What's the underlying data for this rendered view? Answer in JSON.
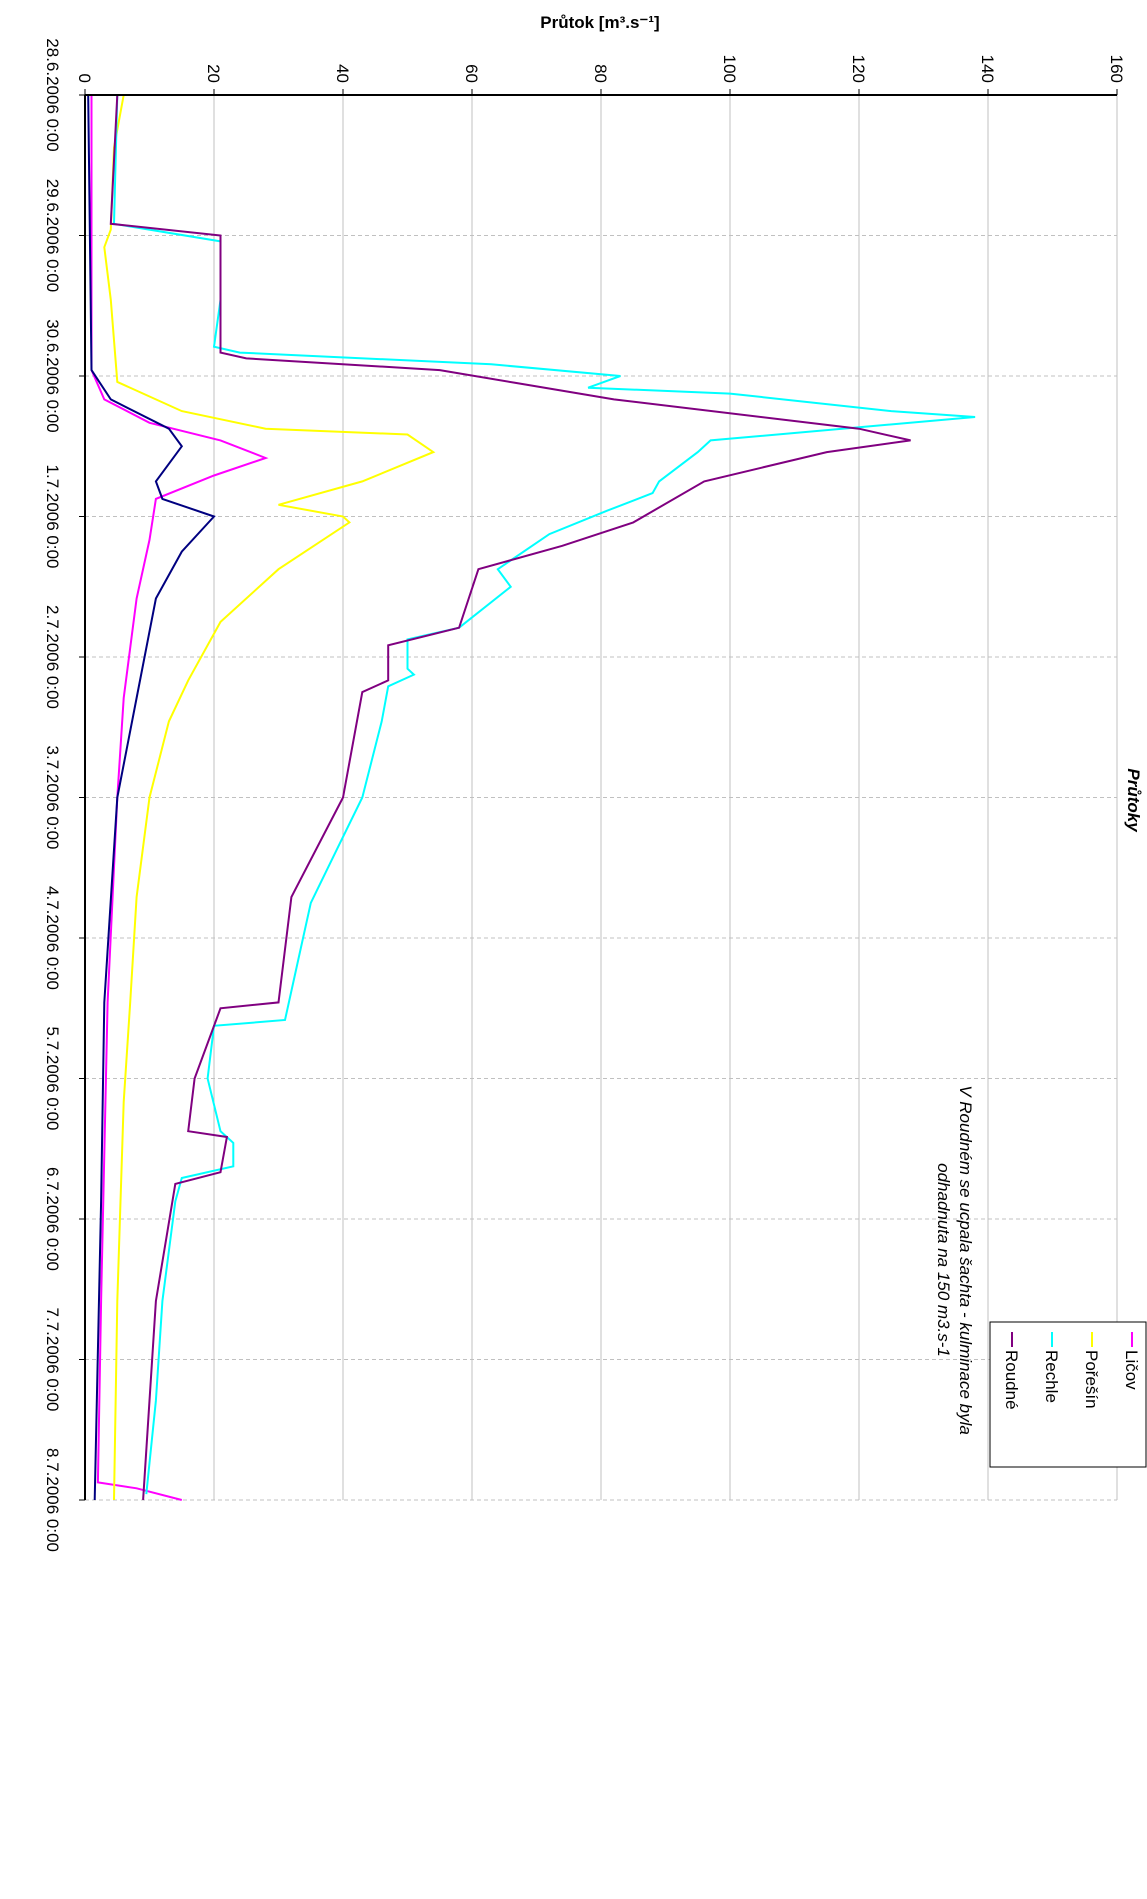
{
  "chart_data": {
    "type": "line",
    "title": "Průtoky",
    "y_label": "Průtok [m³.s⁻¹]",
    "annotations": [
      "V Roudném se ucpala šachta - kulminace byla",
      "odhadnuta na 150 m3.s-1"
    ],
    "ylim": [
      0,
      160
    ],
    "yticks": [
      0,
      20,
      40,
      60,
      80,
      100,
      120,
      140,
      160
    ],
    "xlim": [
      "2006-06-28T00:00",
      "2006-07-08T00:00"
    ],
    "xticks": [
      {
        "value": "2006-06-28T00:00",
        "label": "28.6.2006 0:00"
      },
      {
        "value": "2006-06-29T00:00",
        "label": "29.6.2006 0:00"
      },
      {
        "value": "2006-06-30T00:00",
        "label": "30.6.2006 0:00"
      },
      {
        "value": "2006-07-01T00:00",
        "label": "1.7.2006 0:00"
      },
      {
        "value": "2006-07-02T00:00",
        "label": "2.7.2006 0:00"
      },
      {
        "value": "2006-07-03T00:00",
        "label": "3.7.2006 0:00"
      },
      {
        "value": "2006-07-04T00:00",
        "label": "4.7.2006 0:00"
      },
      {
        "value": "2006-07-05T00:00",
        "label": "5.7.2006 0:00"
      },
      {
        "value": "2006-07-06T00:00",
        "label": "6.7.2006 0:00"
      },
      {
        "value": "2006-07-07T00:00",
        "label": "7.7.2006 0:00"
      },
      {
        "value": "2006-07-08T00:00",
        "label": "8.7.2006 0:00"
      }
    ],
    "grid": true,
    "series": [
      {
        "name": "Ličov",
        "color": "#ff00ff",
        "x": [
          "2006-06-28T00:00",
          "2006-06-29T23:00",
          "2006-06-30T04:00",
          "2006-06-30T08:00",
          "2006-06-30T11:00",
          "2006-06-30T14:00",
          "2006-06-30T17:00",
          "2006-06-30T21:00",
          "2006-07-01T04:00",
          "2006-07-01T14:00",
          "2006-07-02T07:00",
          "2006-07-03T00:00",
          "2006-07-04T11:00",
          "2006-07-06T14:00",
          "2006-07-07T21:00",
          "2006-07-07T22:00",
          "2006-07-08T00:00"
        ],
        "values": [
          1,
          1,
          3,
          10,
          21,
          28,
          20,
          11,
          10,
          8,
          6,
          5,
          3.5,
          2.5,
          2,
          8,
          15
        ]
      },
      {
        "name": "Pořešín",
        "color": "#ffff00",
        "x": [
          "2006-06-28T00:00",
          "2006-06-28T09:00",
          "2006-06-28T23:00",
          "2006-06-29T02:00",
          "2006-06-29T11:00",
          "2006-06-30T01:00",
          "2006-06-30T06:00",
          "2006-06-30T09:00",
          "2006-06-30T10:00",
          "2006-06-30T13:00",
          "2006-06-30T18:00",
          "2006-06-30T22:00",
          "2006-07-01T00:00",
          "2006-07-01T01:00",
          "2006-07-01T09:00",
          "2006-07-01T18:00",
          "2006-07-02T04:00",
          "2006-07-02T11:00",
          "2006-07-03T00:00",
          "2006-07-03T17:00",
          "2006-07-04T11:00",
          "2006-07-05T04:00",
          "2006-07-06T14:00",
          "2006-07-08T00:00"
        ],
        "values": [
          6,
          4.5,
          4,
          3,
          4,
          5,
          15,
          28,
          50,
          54,
          43,
          30,
          40,
          41,
          30,
          21,
          16,
          13,
          10,
          8,
          7,
          6,
          5,
          4.5
        ]
      },
      {
        "name": "Rechle",
        "color": "#00ffff",
        "x": [
          "2006-06-28T00:00",
          "2006-06-28T22:00",
          "2006-06-29T01:00",
          "2006-06-29T11:00",
          "2006-06-29T19:00",
          "2006-06-29T20:00",
          "2006-06-29T22:00",
          "2006-06-30T00:00",
          "2006-06-30T02:00",
          "2006-06-30T03:00",
          "2006-06-30T06:00",
          "2006-06-30T07:00",
          "2006-06-30T11:00",
          "2006-06-30T13:00",
          "2006-06-30T18:00",
          "2006-06-30T20:00",
          "2006-06-30T23:00",
          "2006-07-01T03:00",
          "2006-07-01T09:00",
          "2006-07-01T12:00",
          "2006-07-01T19:00",
          "2006-07-01T21:00",
          "2006-07-02T02:00",
          "2006-07-02T03:00",
          "2006-07-02T05:00",
          "2006-07-02T11:00",
          "2006-07-03T00:00",
          "2006-07-03T09:00",
          "2006-07-03T18:00",
          "2006-07-04T04:00",
          "2006-07-04T14:00",
          "2006-07-04T15:00",
          "2006-07-05T00:00",
          "2006-07-05T09:00",
          "2006-07-05T11:00",
          "2006-07-05T15:00",
          "2006-07-05T17:00",
          "2006-07-05T21:00",
          "2006-07-06T14:00",
          "2006-07-07T07:00",
          "2006-07-07T23:00"
        ],
        "values": [
          5,
          4.5,
          21,
          21,
          20,
          24,
          63,
          83,
          78,
          100,
          125,
          138,
          97,
          95,
          89,
          88,
          81,
          72,
          64,
          66,
          58,
          50,
          50,
          51,
          47,
          46,
          43,
          39,
          35,
          33,
          31,
          20,
          19,
          21,
          23,
          23,
          15,
          14,
          12,
          11,
          9.5
        ]
      },
      {
        "name": "Roudné",
        "color": "#800080",
        "x": [
          "2006-06-28T00:00",
          "2006-06-28T22:00",
          "2006-06-29T00:00",
          "2006-06-29T20:00",
          "2006-06-29T21:00",
          "2006-06-29T23:00",
          "2006-06-30T04:00",
          "2006-06-30T09:00",
          "2006-06-30T11:00",
          "2006-06-30T13:00",
          "2006-06-30T18:00",
          "2006-07-01T01:00",
          "2006-07-01T05:00",
          "2006-07-01T09:00",
          "2006-07-01T19:00",
          "2006-07-01T22:00",
          "2006-07-02T04:00",
          "2006-07-02T06:00",
          "2006-07-03T00:00",
          "2006-07-03T17:00",
          "2006-07-04T11:00",
          "2006-07-04T12:00",
          "2006-07-05T00:00",
          "2006-07-05T09:00",
          "2006-07-05T10:00",
          "2006-07-05T16:00",
          "2006-07-05T18:00",
          "2006-07-06T14:00",
          "2006-07-07T07:00",
          "2006-07-08T00:00"
        ],
        "values": [
          5,
          4,
          21,
          21,
          25,
          55,
          82,
          120,
          128,
          115,
          96,
          85,
          74,
          61,
          58,
          47,
          47,
          43,
          40,
          32,
          30,
          21,
          17,
          16,
          22,
          21,
          14,
          11,
          10,
          9
        ]
      },
      {
        "color": "#000080",
        "x": [
          "2006-06-28T00:00",
          "2006-06-29T23:00",
          "2006-06-30T04:00",
          "2006-06-30T09:00",
          "2006-06-30T12:00",
          "2006-06-30T18:00",
          "2006-06-30T21:00",
          "2006-07-01T00:00",
          "2006-07-01T06:00",
          "2006-07-01T14:00",
          "2006-07-02T07:00",
          "2006-07-03T00:00",
          "2006-07-04T11:00",
          "2006-07-05T21:00",
          "2006-07-08T00:00"
        ],
        "values": [
          0.5,
          1,
          4,
          13,
          15,
          11,
          12,
          20,
          15,
          11,
          8,
          5,
          3,
          2.5,
          1.5
        ]
      }
    ]
  }
}
